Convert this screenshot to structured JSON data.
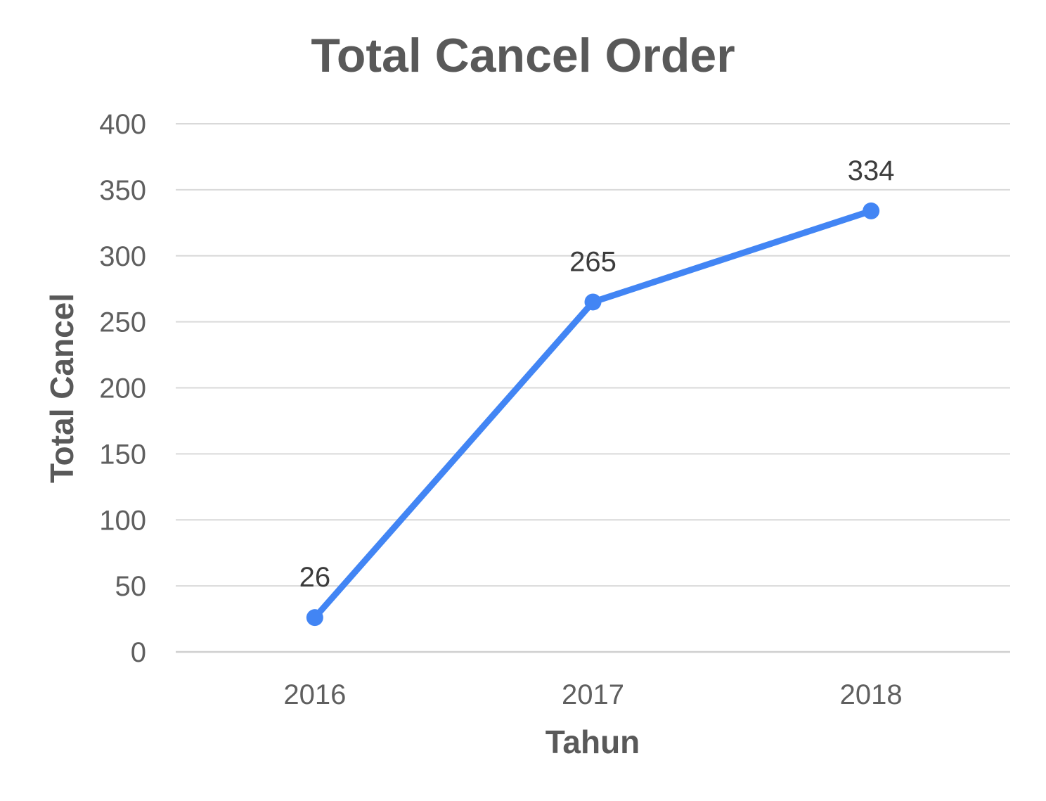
{
  "chart_data": {
    "type": "line",
    "title": "Total Cancel Order",
    "xlabel": "Tahun",
    "ylabel": "Total Cancel",
    "categories": [
      "2016",
      "2017",
      "2018"
    ],
    "series": [
      {
        "values": [
          26,
          265,
          334
        ],
        "color": "#4285f4",
        "markers": true
      }
    ],
    "data_labels": [
      "26",
      "265",
      "334"
    ],
    "ylim": [
      0,
      400
    ],
    "yticks": [
      0,
      50,
      100,
      150,
      200,
      250,
      300,
      350,
      400
    ],
    "ytick_labels": [
      "0",
      "50",
      "100",
      "150",
      "200",
      "250",
      "300",
      "350",
      "400"
    ],
    "grid": true,
    "legend": "none"
  }
}
